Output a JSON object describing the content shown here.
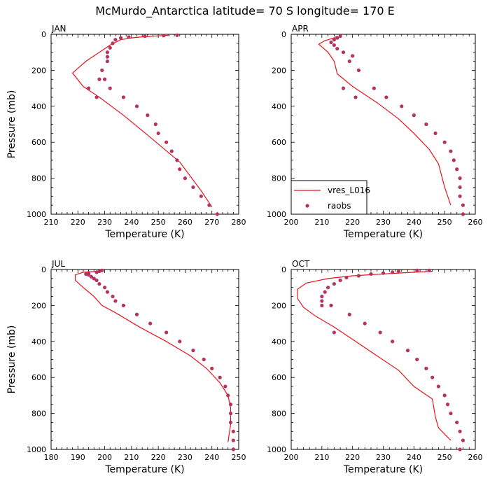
{
  "title": "McMurdo_Antarctica  latitude= 70 S longitude= 170 E",
  "legend": {
    "entries": [
      {
        "label": "vres_L016",
        "kind": "line"
      },
      {
        "label": "raobs",
        "kind": "marker"
      }
    ],
    "placement": "lower-left of APR panel"
  },
  "colors": {
    "model_line": "#e8141c",
    "obs_marker": "#b4345e"
  },
  "chart_data": [
    {
      "type": "line",
      "panel_label": "JAN",
      "xlabel": "Temperature (K)",
      "ylabel": "Pressure (mb)",
      "xlim": [
        210,
        280
      ],
      "ylim": [
        1000,
        0
      ],
      "y_inverted": true,
      "xticks": [
        210,
        220,
        230,
        240,
        250,
        260,
        270,
        280
      ],
      "yticks": [
        0,
        200,
        400,
        600,
        800,
        1000
      ],
      "series": [
        {
          "name": "vres_L016",
          "style": "line",
          "points": [
            [
              270,
              960
            ],
            [
              266,
              870
            ],
            [
              258,
              710
            ],
            [
              246,
              560
            ],
            [
              237,
              450
            ],
            [
              228,
              350
            ],
            [
              222,
              290
            ],
            [
              218,
              215
            ],
            [
              223,
              150
            ],
            [
              228,
              100
            ],
            [
              232,
              60
            ],
            [
              236,
              30
            ],
            [
              241,
              18
            ],
            [
              248,
              10
            ],
            [
              254,
              5
            ]
          ]
        },
        {
          "name": "raobs",
          "style": "marker",
          "points": [
            [
              272,
              1000
            ],
            [
              269,
              950
            ],
            [
              266,
              900
            ],
            [
              263,
              850
            ],
            [
              260,
              800
            ],
            [
              258,
              750
            ],
            [
              257,
              700
            ],
            [
              255,
              650
            ],
            [
              253,
              600
            ],
            [
              250,
              550
            ],
            [
              249,
              500
            ],
            [
              246,
              450
            ],
            [
              242,
              400
            ],
            [
              237,
              350
            ],
            [
              232,
              300
            ],
            [
              228,
              250
            ],
            [
              229,
              200
            ],
            [
              231,
              150
            ],
            [
              231,
              125
            ],
            [
              231,
              100
            ],
            [
              232,
              75
            ],
            [
              233,
              50
            ],
            [
              234,
              30
            ],
            [
              236,
              20
            ],
            [
              239,
              15
            ],
            [
              245,
              10
            ],
            [
              252,
              7
            ],
            [
              257,
              5
            ],
            [
              230,
              250
            ],
            [
              224,
              300
            ],
            [
              227,
              350
            ]
          ]
        }
      ]
    },
    {
      "type": "line",
      "panel_label": "APR",
      "xlabel": "Temperature (K)",
      "ylabel": "",
      "xlim": [
        200,
        260
      ],
      "ylim": [
        1000,
        0
      ],
      "y_inverted": true,
      "xticks": [
        200,
        210,
        220,
        230,
        240,
        250,
        260
      ],
      "yticks": [
        0,
        200,
        400,
        600,
        800,
        1000
      ],
      "series": [
        {
          "name": "vres_L016",
          "style": "line",
          "points": [
            [
              252,
              950
            ],
            [
              250,
              850
            ],
            [
              248,
              720
            ],
            [
              245,
              640
            ],
            [
              240,
              550
            ],
            [
              235,
              470
            ],
            [
              228,
              380
            ],
            [
              220,
              290
            ],
            [
              215,
              220
            ],
            [
              214,
              150
            ],
            [
              212,
              100
            ],
            [
              209,
              55
            ],
            [
              211,
              35
            ],
            [
              214,
              20
            ],
            [
              215,
              10
            ]
          ]
        },
        {
          "name": "raobs",
          "style": "marker",
          "points": [
            [
              256,
              1000
            ],
            [
              256,
              950
            ],
            [
              255,
              900
            ],
            [
              255,
              850
            ],
            [
              255,
              800
            ],
            [
              254,
              750
            ],
            [
              253,
              700
            ],
            [
              252,
              650
            ],
            [
              250,
              600
            ],
            [
              247,
              550
            ],
            [
              244,
              500
            ],
            [
              240,
              450
            ],
            [
              236,
              400
            ],
            [
              231,
              350
            ],
            [
              227,
              300
            ],
            [
              222,
              200
            ],
            [
              219,
              150
            ],
            [
              220,
              120
            ],
            [
              217,
              100
            ],
            [
              215,
              80
            ],
            [
              214,
              60
            ],
            [
              213,
              45
            ],
            [
              214,
              30
            ],
            [
              215,
              20
            ],
            [
              216,
              10
            ],
            [
              221,
              350
            ],
            [
              217,
              300
            ]
          ]
        }
      ]
    },
    {
      "type": "line",
      "panel_label": "JUL",
      "xlabel": "Temperature (K)",
      "ylabel": "Pressure (mb)",
      "xlim": [
        180,
        250
      ],
      "ylim": [
        1000,
        0
      ],
      "y_inverted": true,
      "xticks": [
        180,
        190,
        200,
        210,
        220,
        230,
        240,
        250
      ],
      "yticks": [
        0,
        200,
        400,
        600,
        800,
        1000
      ],
      "series": [
        {
          "name": "vres_L016",
          "style": "line",
          "points": [
            [
              246,
              960
            ],
            [
              247,
              860
            ],
            [
              247,
              770
            ],
            [
              246,
              700
            ],
            [
              243,
              630
            ],
            [
              238,
              550
            ],
            [
              232,
              480
            ],
            [
              223,
              400
            ],
            [
              213,
              320
            ],
            [
              204,
              240
            ],
            [
              199,
              200
            ],
            [
              196,
              150
            ],
            [
              192,
              100
            ],
            [
              189,
              60
            ],
            [
              189,
              30
            ],
            [
              192,
              15
            ],
            [
              197,
              10
            ]
          ]
        },
        {
          "name": "raobs",
          "style": "marker",
          "points": [
            [
              248,
              1000
            ],
            [
              248,
              950
            ],
            [
              248,
              900
            ],
            [
              247,
              850
            ],
            [
              247,
              800
            ],
            [
              247,
              750
            ],
            [
              246,
              700
            ],
            [
              245,
              650
            ],
            [
              243,
              600
            ],
            [
              240,
              550
            ],
            [
              237,
              500
            ],
            [
              233,
              450
            ],
            [
              228,
              400
            ],
            [
              223,
              350
            ],
            [
              217,
              300
            ],
            [
              212,
              250
            ],
            [
              207,
              200
            ],
            [
              204,
              175
            ],
            [
              203,
              150
            ],
            [
              201,
              125
            ],
            [
              200,
              100
            ],
            [
              198,
              80
            ],
            [
              197,
              60
            ],
            [
              196,
              50
            ],
            [
              195,
              40
            ],
            [
              194,
              30
            ],
            [
              193,
              25
            ],
            [
              194,
              20
            ],
            [
              197,
              15
            ],
            [
              198,
              10
            ],
            [
              199,
              5
            ]
          ]
        }
      ]
    },
    {
      "type": "line",
      "panel_label": "OCT",
      "xlabel": "Temperature (K)",
      "ylabel": "",
      "xlim": [
        200,
        260
      ],
      "ylim": [
        1000,
        0
      ],
      "y_inverted": true,
      "xticks": [
        200,
        210,
        220,
        230,
        240,
        250,
        260
      ],
      "yticks": [
        0,
        200,
        400,
        600,
        800,
        1000
      ],
      "series": [
        {
          "name": "vres_L016",
          "style": "line",
          "points": [
            [
              252,
              950
            ],
            [
              248,
              880
            ],
            [
              247,
              820
            ],
            [
              246,
              720
            ],
            [
              240,
              650
            ],
            [
              235,
              560
            ],
            [
              228,
              480
            ],
            [
              221,
              400
            ],
            [
              214,
              320
            ],
            [
              208,
              260
            ],
            [
              204,
              210
            ],
            [
              202,
              160
            ],
            [
              202,
              110
            ],
            [
              205,
              75
            ],
            [
              212,
              50
            ],
            [
              220,
              35
            ],
            [
              230,
              25
            ],
            [
              240,
              15
            ],
            [
              246,
              10
            ]
          ]
        },
        {
          "name": "raobs",
          "style": "marker",
          "points": [
            [
              255,
              1000
            ],
            [
              256,
              950
            ],
            [
              255,
              900
            ],
            [
              254,
              850
            ],
            [
              252,
              800
            ],
            [
              251,
              750
            ],
            [
              250,
              700
            ],
            [
              248,
              650
            ],
            [
              246,
              600
            ],
            [
              244,
              550
            ],
            [
              241,
              500
            ],
            [
              238,
              450
            ],
            [
              233,
              400
            ],
            [
              229,
              350
            ],
            [
              224,
              300
            ],
            [
              219,
              250
            ],
            [
              213,
              200
            ],
            [
              210,
              175
            ],
            [
              210,
              150
            ],
            [
              211,
              125
            ],
            [
              212,
              100
            ],
            [
              214,
              80
            ],
            [
              216,
              60
            ],
            [
              218,
              45
            ],
            [
              222,
              35
            ],
            [
              226,
              25
            ],
            [
              230,
              20
            ],
            [
              233,
              15
            ],
            [
              235,
              10
            ],
            [
              241,
              5
            ],
            [
              245,
              5
            ],
            [
              214,
              350
            ],
            [
              210,
              200
            ]
          ]
        }
      ]
    }
  ]
}
